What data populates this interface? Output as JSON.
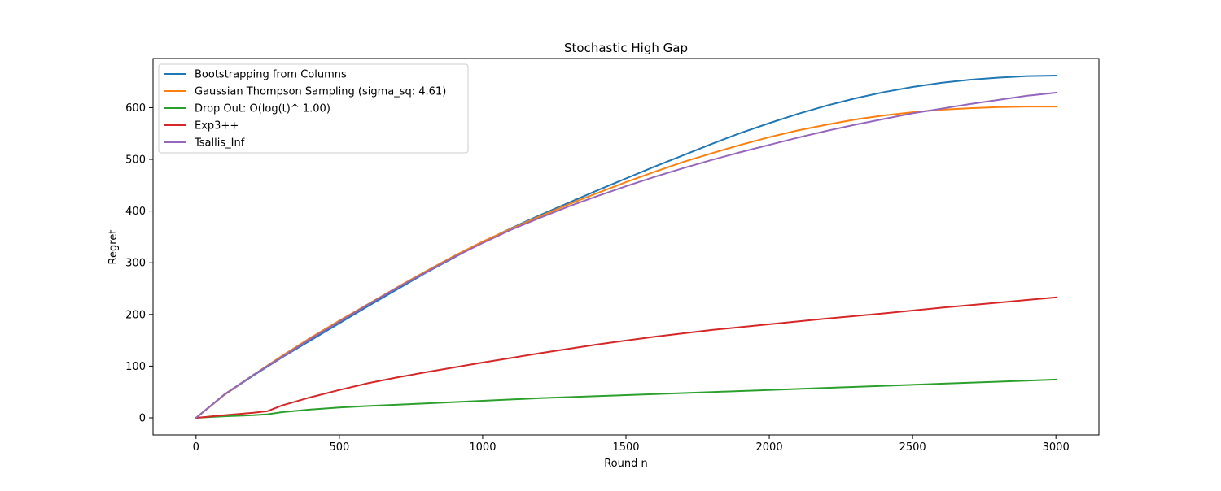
{
  "chart_data": {
    "type": "line",
    "title": "Stochastic High Gap",
    "xlabel": "Round n",
    "ylabel": "Regret",
    "xlim": [
      -150,
      3150
    ],
    "ylim": [
      -33,
      695
    ],
    "xticks": [
      0,
      500,
      1000,
      1500,
      2000,
      2500,
      3000
    ],
    "yticks": [
      0,
      100,
      200,
      300,
      400,
      500,
      600
    ],
    "grid": false,
    "legend_position": "top-left",
    "series": [
      {
        "name": "Bootstrapping from Columns",
        "color": "#1f77b4",
        "x": [
          0,
          100,
          200,
          300,
          400,
          500,
          600,
          700,
          800,
          900,
          1000,
          1100,
          1200,
          1300,
          1400,
          1500,
          1600,
          1700,
          1800,
          1900,
          2000,
          2100,
          2200,
          2300,
          2400,
          2500,
          2600,
          2700,
          2800,
          2900,
          3000
        ],
        "y": [
          0,
          45,
          82,
          117,
          150,
          183,
          216,
          248,
          280,
          310,
          340,
          367,
          392,
          416,
          440,
          463,
          486,
          508,
          530,
          551,
          570,
          588,
          604,
          618,
          630,
          640,
          648,
          654,
          658,
          661,
          662
        ]
      },
      {
        "name": "Gaussian Thompson Sampling (sigma_sq: 4.61)",
        "color": "#ff7f0e",
        "x": [
          0,
          100,
          200,
          300,
          400,
          500,
          600,
          700,
          800,
          900,
          1000,
          1100,
          1200,
          1300,
          1400,
          1500,
          1600,
          1700,
          1800,
          1900,
          2000,
          2100,
          2200,
          2300,
          2400,
          2500,
          2600,
          2700,
          2800,
          2900,
          3000
        ],
        "y": [
          0,
          45,
          83,
          120,
          155,
          188,
          220,
          252,
          283,
          313,
          341,
          366,
          390,
          413,
          435,
          456,
          476,
          495,
          512,
          528,
          543,
          556,
          567,
          577,
          585,
          591,
          596,
          599,
          601,
          602,
          602
        ]
      },
      {
        "name": "Drop Out: O(log(t)^ 1.00)",
        "color": "#2ca02c",
        "x": [
          0,
          100,
          200,
          250,
          300,
          400,
          500,
          600,
          800,
          1000,
          1200,
          1400,
          1600,
          1800,
          2000,
          2200,
          2400,
          2600,
          2800,
          3000
        ],
        "y": [
          0,
          3,
          5,
          7,
          11,
          16,
          20,
          23,
          28,
          33,
          38,
          42,
          46,
          50,
          54,
          58,
          62,
          66,
          70,
          74
        ]
      },
      {
        "name": "Exp3++",
        "color": "#d62728",
        "x": [
          0,
          100,
          200,
          250,
          300,
          400,
          500,
          600,
          700,
          800,
          1000,
          1200,
          1400,
          1600,
          1800,
          2000,
          2200,
          2400,
          2600,
          2800,
          3000
        ],
        "y": [
          0,
          5,
          10,
          13,
          24,
          40,
          54,
          67,
          78,
          88,
          107,
          125,
          142,
          157,
          170,
          181,
          192,
          202,
          213,
          223,
          233
        ]
      },
      {
        "name": "Tsallis_Inf",
        "color": "#9467bd",
        "x": [
          0,
          100,
          200,
          300,
          400,
          500,
          600,
          700,
          800,
          900,
          1000,
          1100,
          1200,
          1300,
          1400,
          1500,
          1600,
          1700,
          1800,
          1900,
          2000,
          2100,
          2200,
          2300,
          2400,
          2500,
          2600,
          2700,
          2800,
          2900,
          3000
        ],
        "y": [
          0,
          46,
          83,
          118,
          153,
          186,
          219,
          251,
          281,
          311,
          338,
          364,
          387,
          409,
          429,
          448,
          466,
          483,
          499,
          514,
          528,
          542,
          555,
          567,
          578,
          589,
          598,
          607,
          615,
          623,
          629
        ]
      }
    ]
  }
}
